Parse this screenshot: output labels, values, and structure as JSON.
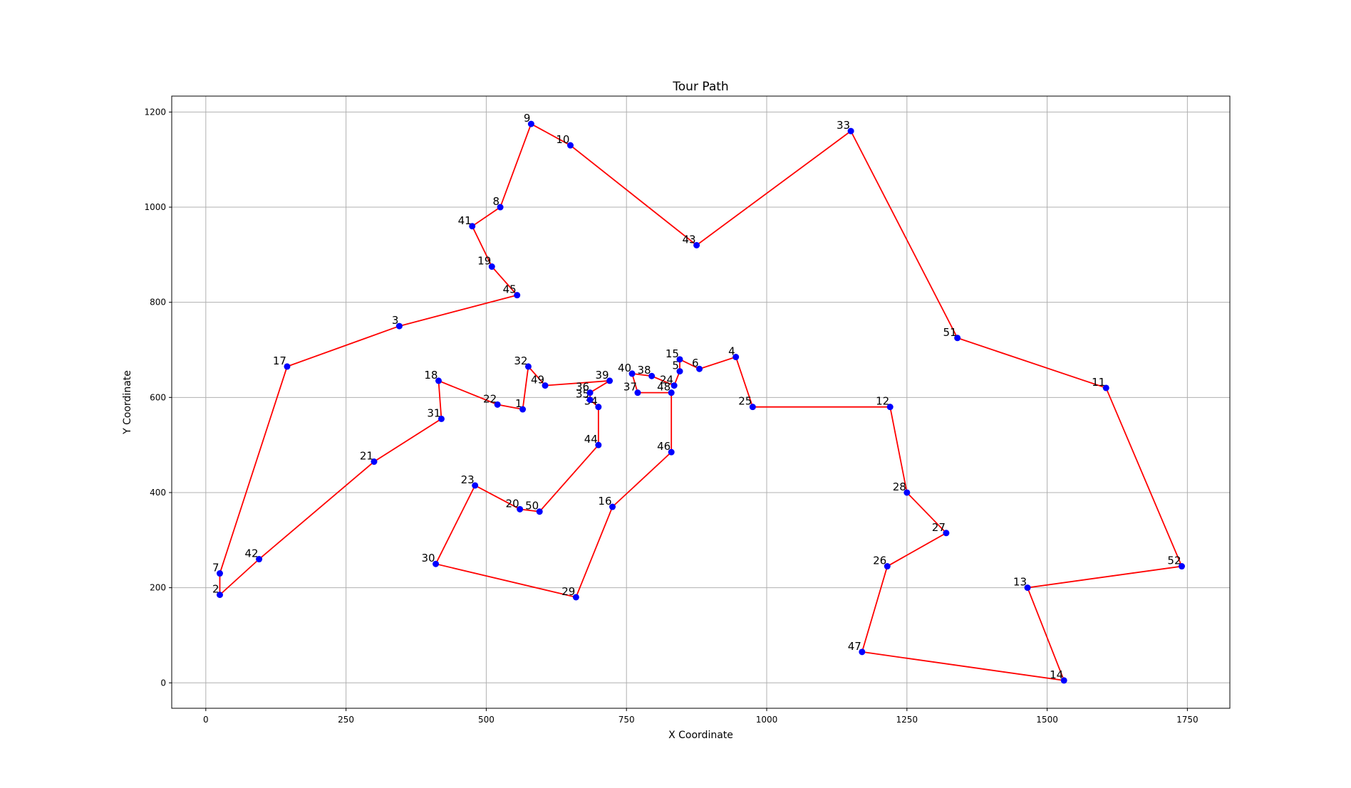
{
  "chart_data": {
    "type": "line",
    "title": "Tour Path",
    "x_label": "X Coordinate",
    "y_label": "Y Coordinate",
    "point_labels": [
      "1",
      "22",
      "18",
      "31",
      "21",
      "42",
      "2",
      "7",
      "17",
      "3",
      "45",
      "19",
      "41",
      "8",
      "9",
      "10",
      "43",
      "33",
      "51",
      "11",
      "52",
      "13",
      "14",
      "47",
      "26",
      "27",
      "28",
      "12",
      "25",
      "4",
      "6",
      "15",
      "5",
      "24",
      "38",
      "40",
      "37",
      "48",
      "46",
      "16",
      "29",
      "30",
      "23",
      "20",
      "50",
      "44",
      "34",
      "35",
      "36",
      "39",
      "49",
      "32"
    ],
    "x": [
      565,
      520,
      415,
      420,
      300,
      95,
      25,
      25,
      145,
      345,
      555,
      510,
      475,
      525,
      580,
      650,
      875,
      1150,
      1340,
      1605,
      1740,
      1465,
      1530,
      1170,
      1215,
      1320,
      1250,
      1220,
      975,
      945,
      880,
      845,
      845,
      835,
      795,
      760,
      770,
      830,
      830,
      725,
      660,
      410,
      480,
      560,
      595,
      700,
      700,
      685,
      685,
      720,
      605,
      575
    ],
    "y": [
      575,
      585,
      635,
      555,
      465,
      260,
      185,
      230,
      665,
      750,
      815,
      875,
      960,
      1000,
      1175,
      1130,
      920,
      1160,
      725,
      620,
      245,
      200,
      5,
      65,
      245,
      315,
      400,
      580,
      580,
      685,
      660,
      680,
      655,
      625,
      645,
      650,
      610,
      610,
      485,
      370,
      180,
      250,
      415,
      365,
      360,
      500,
      580,
      595,
      610,
      635,
      625,
      665
    ],
    "line_color": "#ff0000",
    "marker_color": "#0000ff",
    "closed": true,
    "xlim": [
      -60.75,
      1825.75
    ],
    "ylim": [
      -53.5,
      1233.5
    ],
    "xticks": [
      0,
      250,
      500,
      750,
      1000,
      1250,
      1500,
      1750
    ],
    "yticks": [
      0,
      200,
      400,
      600,
      800,
      1000,
      1200
    ],
    "grid": true
  }
}
